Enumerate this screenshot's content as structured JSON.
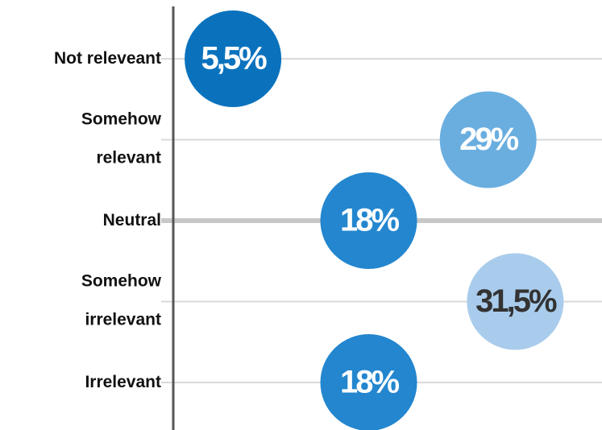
{
  "chart_data": {
    "type": "dot",
    "categories": [
      "Not releveant",
      "Somehow\nrelevant",
      "Neutral",
      "Somehow\nirrelevant",
      "Irrelevant"
    ],
    "values": [
      5.5,
      29,
      18,
      31.5,
      18
    ],
    "value_labels": [
      "5,5%",
      "29%",
      "18%",
      "31,5%",
      "18%"
    ],
    "colors": [
      "#0a72bd",
      "#6aaee0",
      "#2386cf",
      "#a9ccec",
      "#2386cf"
    ],
    "label_colors": [
      "#ffffff",
      "#ffffff",
      "#ffffff",
      "#333333",
      "#ffffff"
    ],
    "xlim": [
      0,
      36
    ],
    "grid": true
  }
}
